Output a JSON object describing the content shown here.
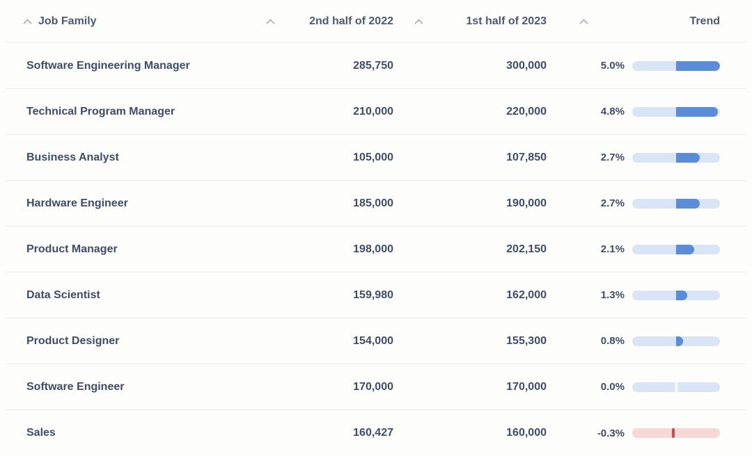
{
  "header": {
    "columns": [
      {
        "id": "job_family",
        "label": "Job Family",
        "sortable": true
      },
      {
        "id": "h2_2022",
        "label": "2nd half of 2022",
        "sortable": true
      },
      {
        "id": "h1_2023",
        "label": "1st half of 2023",
        "sortable": true
      },
      {
        "id": "pct_change",
        "label": "",
        "sortable": true
      },
      {
        "id": "trend",
        "label": "Trend",
        "sortable": false
      }
    ]
  },
  "rows": [
    {
      "job_family": "Software Engineering Manager",
      "h2_2022": "285,750",
      "h1_2023": "300,000",
      "pct_change": "5.0%",
      "pct_value": 5.0
    },
    {
      "job_family": "Technical Program Manager",
      "h2_2022": "210,000",
      "h1_2023": "220,000",
      "pct_change": "4.8%",
      "pct_value": 4.8
    },
    {
      "job_family": "Business Analyst",
      "h2_2022": "105,000",
      "h1_2023": "107,850",
      "pct_change": "2.7%",
      "pct_value": 2.7
    },
    {
      "job_family": "Hardware Engineer",
      "h2_2022": "185,000",
      "h1_2023": "190,000",
      "pct_change": "2.7%",
      "pct_value": 2.7
    },
    {
      "job_family": "Product Manager",
      "h2_2022": "198,000",
      "h1_2023": "202,150",
      "pct_change": "2.1%",
      "pct_value": 2.1
    },
    {
      "job_family": "Data Scientist",
      "h2_2022": "159,980",
      "h1_2023": "162,000",
      "pct_change": "1.3%",
      "pct_value": 1.3
    },
    {
      "job_family": "Product Designer",
      "h2_2022": "154,000",
      "h1_2023": "155,300",
      "pct_change": "0.8%",
      "pct_value": 0.8
    },
    {
      "job_family": "Software Engineer",
      "h2_2022": "170,000",
      "h1_2023": "170,000",
      "pct_change": "0.0%",
      "pct_value": 0.0
    },
    {
      "job_family": "Sales",
      "h2_2022": "160,427",
      "h1_2023": "160,000",
      "pct_change": "-0.3%",
      "pct_value": -0.3
    }
  ],
  "trend": {
    "scale_max_pct": 5.0,
    "positive_fill_color": "#5b8cd8",
    "positive_track_color": "#d9e5f7",
    "negative_track_color": "#f6d8d6",
    "negative_tick_color": "#c4504b"
  }
}
